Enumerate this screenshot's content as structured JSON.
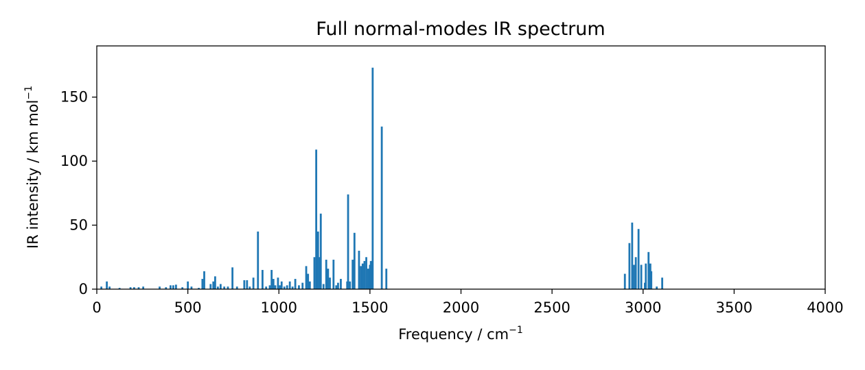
{
  "chart_data": {
    "type": "bar",
    "title": "Full normal-modes IR spectrum",
    "xlabel_text": "Frequency / cm",
    "xlabel_sup": "−1",
    "ylabel_text": "IR intensity / km mol",
    "ylabel_sup": "−1",
    "xlim": [
      0,
      4000
    ],
    "ylim": [
      0,
      190
    ],
    "xticks": [
      0,
      500,
      1000,
      1500,
      2000,
      2500,
      3000,
      3500,
      4000
    ],
    "yticks": [
      0,
      50,
      100,
      150
    ],
    "grid": false,
    "color": "#1f77b4",
    "points": [
      [
        25,
        2
      ],
      [
        55,
        6
      ],
      [
        70,
        2
      ],
      [
        125,
        1
      ],
      [
        185,
        1.5
      ],
      [
        205,
        1.5
      ],
      [
        230,
        1.5
      ],
      [
        255,
        2
      ],
      [
        345,
        2
      ],
      [
        380,
        1.5
      ],
      [
        405,
        3
      ],
      [
        420,
        3
      ],
      [
        435,
        3.5
      ],
      [
        470,
        1.5
      ],
      [
        500,
        6
      ],
      [
        520,
        2
      ],
      [
        560,
        1
      ],
      [
        580,
        8
      ],
      [
        590,
        14
      ],
      [
        625,
        4
      ],
      [
        640,
        6
      ],
      [
        650,
        10
      ],
      [
        665,
        2
      ],
      [
        680,
        4
      ],
      [
        700,
        2
      ],
      [
        720,
        2
      ],
      [
        745,
        17
      ],
      [
        770,
        2
      ],
      [
        810,
        7
      ],
      [
        825,
        7
      ],
      [
        840,
        2
      ],
      [
        860,
        9
      ],
      [
        885,
        45
      ],
      [
        910,
        15
      ],
      [
        930,
        2
      ],
      [
        950,
        3
      ],
      [
        960,
        15
      ],
      [
        970,
        8
      ],
      [
        980,
        3
      ],
      [
        995,
        9
      ],
      [
        1005,
        3
      ],
      [
        1015,
        6
      ],
      [
        1030,
        2
      ],
      [
        1045,
        3
      ],
      [
        1060,
        6
      ],
      [
        1075,
        2
      ],
      [
        1090,
        8
      ],
      [
        1110,
        3
      ],
      [
        1130,
        5
      ],
      [
        1150,
        18
      ],
      [
        1160,
        12
      ],
      [
        1170,
        6
      ],
      [
        1195,
        25
      ],
      [
        1205,
        109
      ],
      [
        1215,
        45
      ],
      [
        1225,
        25
      ],
      [
        1230,
        59
      ],
      [
        1245,
        4
      ],
      [
        1260,
        23
      ],
      [
        1270,
        16
      ],
      [
        1280,
        9
      ],
      [
        1300,
        23
      ],
      [
        1315,
        3
      ],
      [
        1325,
        5
      ],
      [
        1340,
        8
      ],
      [
        1375,
        6
      ],
      [
        1380,
        74
      ],
      [
        1390,
        6
      ],
      [
        1405,
        23
      ],
      [
        1415,
        44
      ],
      [
        1440,
        30
      ],
      [
        1450,
        18
      ],
      [
        1460,
        20
      ],
      [
        1470,
        22
      ],
      [
        1480,
        25
      ],
      [
        1490,
        16
      ],
      [
        1500,
        19
      ],
      [
        1505,
        22
      ],
      [
        1515,
        173
      ],
      [
        1565,
        127
      ],
      [
        1590,
        16
      ],
      [
        2900,
        12
      ],
      [
        2925,
        36
      ],
      [
        2940,
        52
      ],
      [
        2950,
        19
      ],
      [
        2960,
        25
      ],
      [
        2975,
        47
      ],
      [
        2990,
        19
      ],
      [
        3010,
        5
      ],
      [
        3015,
        20
      ],
      [
        3030,
        29
      ],
      [
        3040,
        20
      ],
      [
        3045,
        14
      ],
      [
        3075,
        2
      ],
      [
        3105,
        9
      ]
    ]
  }
}
